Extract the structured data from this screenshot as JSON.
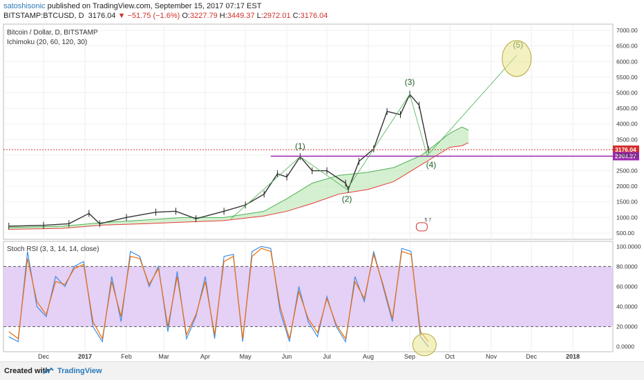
{
  "header": {
    "author": "satoshisonic",
    "published_text": "published on TradingView.com, September 15, 2017 07:17 EST",
    "symbol": "BITSTAMP:BTCUSD, D",
    "last": "3176.04",
    "change": "−51.75 (−1.6%)",
    "o_label": "O:",
    "o_value": "3227.79",
    "h_label": "H:",
    "h_value": "3449.37",
    "l_label": "L:",
    "l_value": "2972.01",
    "c_label": "C:",
    "c_value": "3176.04"
  },
  "footer": {
    "created_with": "Created with",
    "brand": "TradingView"
  },
  "chart_data": [
    {
      "type": "line",
      "title": "Bitcoin / Dollar, D, BITSTAMP",
      "indicator": "Ichimoku (20, 60, 120, 30)",
      "x_ticks": [
        "Dec",
        "2017",
        "Feb",
        "Mar",
        "Apr",
        "May",
        "Jun",
        "Jul",
        "Aug",
        "Sep",
        "Oct",
        "Nov",
        "Dec",
        "2018"
      ],
      "y_ticks": [
        "7000.00",
        "6500.00",
        "6000.00",
        "5500.00",
        "5000.00",
        "4500.00",
        "4000.00",
        "3500.00",
        "3000.00",
        "2500.00",
        "2000.00",
        "1500.00",
        "1000.00",
        "500.00"
      ],
      "ylim": [
        300,
        7200
      ],
      "price_series": {
        "name": "",
        "color": "#333333",
        "x": [
          "2016-11-05",
          "2016-12-01",
          "2016-12-20",
          "2017-01-04",
          "2017-01-12",
          "2017-02-01",
          "2017-02-23",
          "2017-03-10",
          "2017-03-25",
          "2017-04-15",
          "2017-05-01",
          "2017-05-15",
          "2017-05-25",
          "2017-06-01",
          "2017-06-11",
          "2017-06-20",
          "2017-07-01",
          "2017-07-15",
          "2017-07-17",
          "2017-07-25",
          "2017-08-05",
          "2017-08-15",
          "2017-08-25",
          "2017-09-01",
          "2017-09-08",
          "2017-09-15"
        ],
        "values": [
          720,
          750,
          800,
          1130,
          800,
          1000,
          1170,
          1200,
          960,
          1200,
          1400,
          1750,
          2400,
          2300,
          2950,
          2500,
          2500,
          2100,
          1900,
          2800,
          3200,
          4400,
          4300,
          4950,
          4600,
          3176
        ]
      },
      "ichimoku_span_a": {
        "color": "#4caf50",
        "x": [
          "2016-11-05",
          "2016-12-15",
          "2017-01-15",
          "2017-02-15",
          "2017-03-15",
          "2017-04-15",
          "2017-05-15",
          "2017-06-01",
          "2017-06-20",
          "2017-07-10",
          "2017-08-01",
          "2017-08-20",
          "2017-09-10",
          "2017-10-01",
          "2017-10-10",
          "2017-10-15"
        ],
        "values": [
          680,
          720,
          840,
          920,
          1000,
          1000,
          1200,
          1600,
          2100,
          2350,
          2450,
          2600,
          3000,
          3700,
          3900,
          3800
        ]
      },
      "ichimoku_span_b": {
        "color": "#e53935",
        "x": [
          "2016-11-05",
          "2016-12-15",
          "2017-01-15",
          "2017-02-15",
          "2017-03-15",
          "2017-04-15",
          "2017-05-15",
          "2017-06-01",
          "2017-06-20",
          "2017-07-10",
          "2017-08-01",
          "2017-08-20",
          "2017-09-10",
          "2017-10-01",
          "2017-10-10",
          "2017-10-15"
        ],
        "values": [
          620,
          650,
          760,
          800,
          850,
          900,
          1050,
          1200,
          1450,
          1750,
          1900,
          2150,
          2700,
          3250,
          3300,
          3400
        ]
      },
      "wave_path": {
        "x": [
          "2017-04-20",
          "2017-06-11",
          "2017-07-16",
          "2017-09-01",
          "2017-09-14",
          "2017-11-20"
        ],
        "values": [
          950,
          2950,
          1900,
          4950,
          2980,
          6200
        ]
      },
      "wave_labels": [
        {
          "text": "(1)",
          "x": "2017-06-11",
          "y": 3200
        },
        {
          "text": "(2)",
          "x": "2017-07-16",
          "y": 1500
        },
        {
          "text": "(3)",
          "x": "2017-09-01",
          "y": 5250
        },
        {
          "text": "(4)",
          "x": "2017-09-17",
          "y": 2600
        },
        {
          "text": "(5)",
          "x": "2017-11-21",
          "y": 6450
        }
      ],
      "horizontal_lines": [
        {
          "value": 3176.04,
          "label": "3176.04",
          "color": "#d32f2f",
          "style": "dotted"
        },
        {
          "value": 2964.37,
          "label": "2964.37",
          "color": "#9c27b0",
          "style": "solid"
        }
      ],
      "circles": [
        {
          "x": "2017-11-20",
          "y": 6100
        }
      ],
      "marker_numbers": "5 7"
    },
    {
      "type": "line",
      "title": "Stoch RSI (3, 3, 14, 14, close)",
      "y_ticks": [
        "100.0000",
        "80.0000",
        "60.0000",
        "40.0000",
        "20.0000",
        "0.0000"
      ],
      "ylim": [
        -5,
        105
      ],
      "band": [
        20,
        80
      ],
      "band_color": "#e1c8f5",
      "series": [
        {
          "name": "",
          "color": "#3f8fe6",
          "x": [
            "2016-11-05",
            "2016-11-12",
            "2016-11-19",
            "2016-11-26",
            "2016-12-03",
            "2016-12-10",
            "2016-12-17",
            "2016-12-24",
            "2016-12-31",
            "2017-01-07",
            "2017-01-14",
            "2017-01-21",
            "2017-01-28",
            "2017-02-04",
            "2017-02-11",
            "2017-02-18",
            "2017-02-25",
            "2017-03-04",
            "2017-03-11",
            "2017-03-18",
            "2017-03-25",
            "2017-04-01",
            "2017-04-08",
            "2017-04-15",
            "2017-04-22",
            "2017-04-29",
            "2017-05-06",
            "2017-05-13",
            "2017-05-20",
            "2017-05-27",
            "2017-06-03",
            "2017-06-10",
            "2017-06-17",
            "2017-06-24",
            "2017-07-01",
            "2017-07-08",
            "2017-07-15",
            "2017-07-22",
            "2017-07-29",
            "2017-08-05",
            "2017-08-12",
            "2017-08-19",
            "2017-08-26",
            "2017-09-02",
            "2017-09-09",
            "2017-09-15"
          ],
          "values": [
            10,
            5,
            95,
            40,
            30,
            70,
            60,
            80,
            85,
            20,
            5,
            70,
            25,
            95,
            90,
            60,
            80,
            15,
            75,
            8,
            30,
            70,
            8,
            90,
            92,
            5,
            95,
            100,
            98,
            35,
            5,
            60,
            25,
            10,
            50,
            20,
            5,
            70,
            45,
            95,
            60,
            25,
            98,
            95,
            10,
            0
          ]
        },
        {
          "name": "",
          "color": "#ef6c00",
          "x": [
            "2016-11-05",
            "2016-11-12",
            "2016-11-19",
            "2016-11-26",
            "2016-12-03",
            "2016-12-10",
            "2016-12-17",
            "2016-12-24",
            "2016-12-31",
            "2017-01-07",
            "2017-01-14",
            "2017-01-21",
            "2017-01-28",
            "2017-02-04",
            "2017-02-11",
            "2017-02-18",
            "2017-02-25",
            "2017-03-04",
            "2017-03-11",
            "2017-03-18",
            "2017-03-25",
            "2017-04-01",
            "2017-04-08",
            "2017-04-15",
            "2017-04-22",
            "2017-04-29",
            "2017-05-06",
            "2017-05-13",
            "2017-05-20",
            "2017-05-27",
            "2017-06-03",
            "2017-06-10",
            "2017-06-17",
            "2017-06-24",
            "2017-07-01",
            "2017-07-08",
            "2017-07-15",
            "2017-07-22",
            "2017-07-29",
            "2017-08-05",
            "2017-08-12",
            "2017-08-19",
            "2017-08-26",
            "2017-09-02",
            "2017-09-09",
            "2017-09-15"
          ],
          "values": [
            15,
            8,
            88,
            45,
            32,
            65,
            62,
            78,
            82,
            25,
            8,
            65,
            30,
            90,
            88,
            62,
            78,
            20,
            70,
            12,
            32,
            65,
            12,
            85,
            90,
            8,
            90,
            98,
            95,
            40,
            8,
            55,
            28,
            14,
            48,
            22,
            8,
            65,
            48,
            92,
            62,
            28,
            95,
            92,
            15,
            5
          ]
        }
      ],
      "circles": [
        {
          "x": "2017-09-12",
          "y": 2
        }
      ]
    }
  ],
  "colors": {
    "accent": "#2a7ab9",
    "down": "#d0312d",
    "cloud_fill": "#b9e6b3",
    "circle_fill": "#e9e38e"
  }
}
